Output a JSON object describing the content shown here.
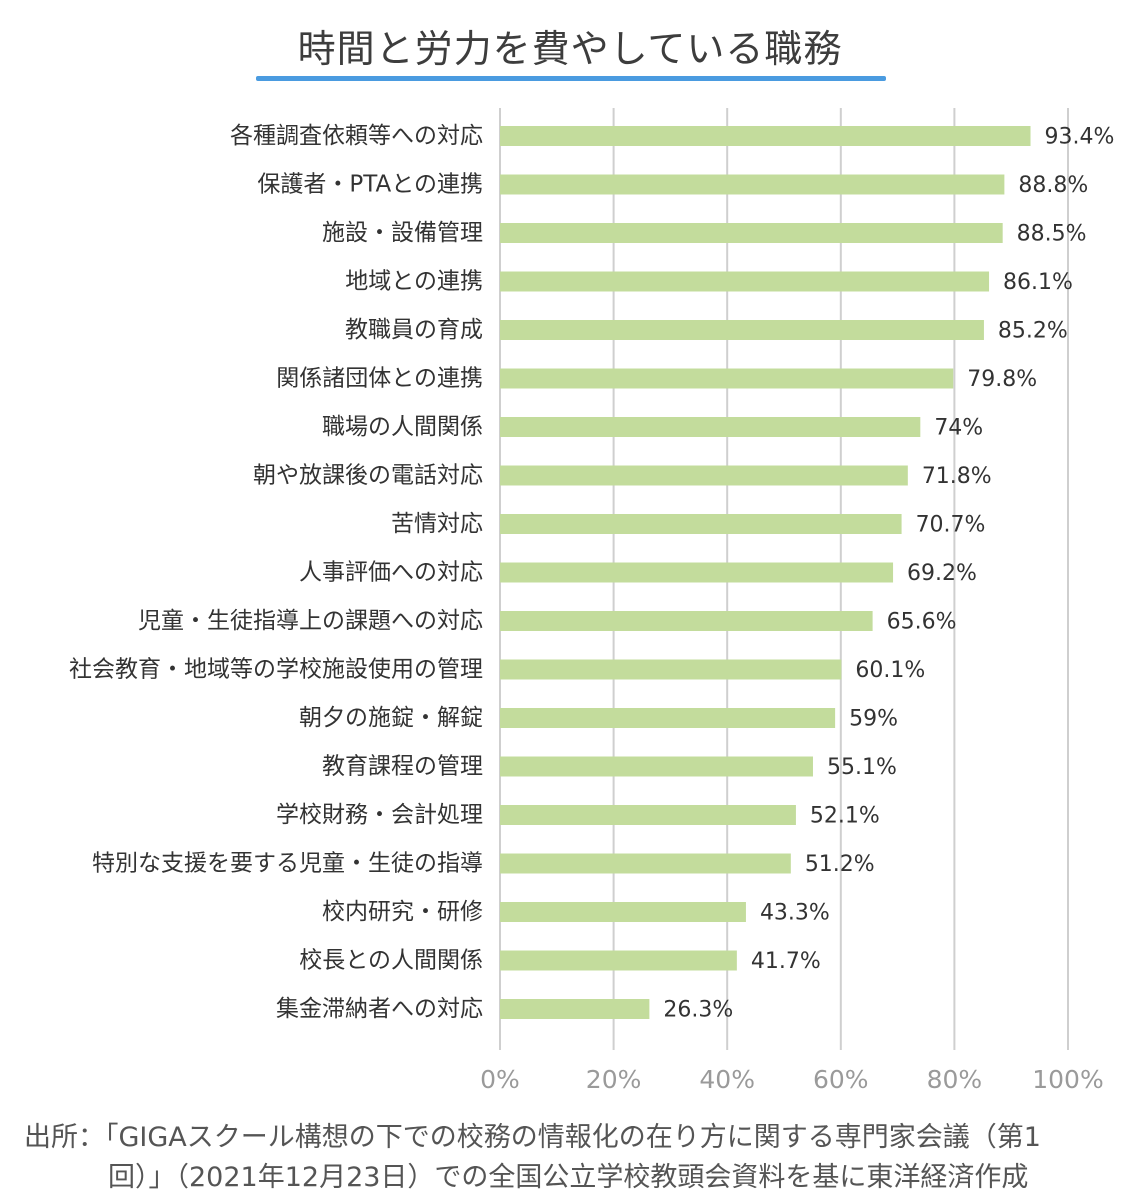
{
  "title": "時間と労力を費やしている職務",
  "source": {
    "line1": "出所：「GIGAスクール構想の下での校務の情報化の在り方に関する専門家会議（第1",
    "line2": "回）」（2021年12月23日）での全国公立学校教頭会資料を基に東洋経済作成"
  },
  "colors": {
    "bar": "#c3dc9c",
    "grid": "#cfcfcf",
    "accent": "#4a9be0"
  },
  "chart_data": {
    "type": "bar",
    "orientation": "horizontal",
    "categories": [
      "各種調査依頼等への対応",
      "保護者・PTAとの連携",
      "施設・設備管理",
      "地域との連携",
      "教職員の育成",
      "関係諸団体との連携",
      "職場の人間関係",
      "朝や放課後の電話対応",
      "苦情対応",
      "人事評価への対応",
      "児童・生徒指導上の課題への対応",
      "社会教育・地域等の学校施設使用の管理",
      "朝夕の施錠・解錠",
      "教育課程の管理",
      "学校財務・会計処理",
      "特別な支援を要する児童・生徒の指導",
      "校内研究・研修",
      "校長との人間関係",
      "集金滞納者への対応"
    ],
    "values": [
      93.4,
      88.8,
      88.5,
      86.1,
      85.2,
      79.8,
      74,
      71.8,
      70.7,
      69.2,
      65.6,
      60.1,
      59,
      55.1,
      52.1,
      51.2,
      43.3,
      41.7,
      26.3
    ],
    "value_labels": [
      "93.4%",
      "88.8%",
      "88.5%",
      "86.1%",
      "85.2%",
      "79.8%",
      "74%",
      "71.8%",
      "70.7%",
      "69.2%",
      "65.6%",
      "60.1%",
      "59%",
      "55.1%",
      "52.1%",
      "51.2%",
      "43.3%",
      "41.7%",
      "26.3%"
    ],
    "xlim": [
      0,
      100
    ],
    "xticks": [
      "0%",
      "20%",
      "40%",
      "60%",
      "80%",
      "100%"
    ],
    "grid": true
  }
}
